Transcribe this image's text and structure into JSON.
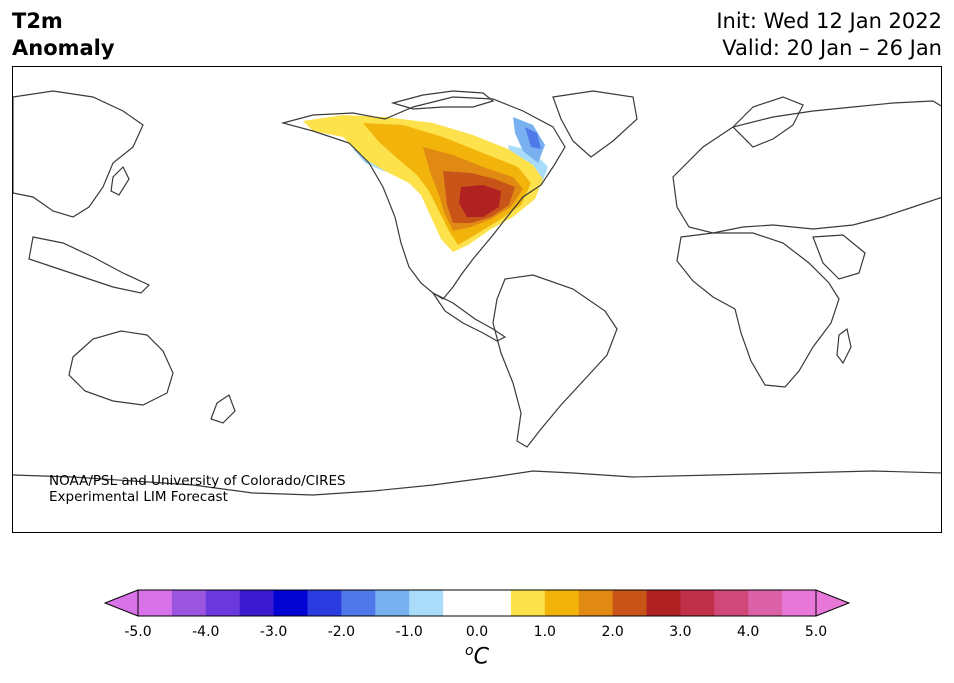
{
  "title": {
    "line1": "T2m",
    "line2": "Anomaly"
  },
  "init": {
    "label": "Init: Wed 12 Jan 2022"
  },
  "valid": {
    "label": "Valid: 20 Jan – 26 Jan"
  },
  "credit": {
    "line1": "NOAA/PSL and University of Colorado/CIRES",
    "line2": "Experimental LIM Forecast"
  },
  "colorbar": {
    "ticks": [
      "-5.0",
      "-4.0",
      "-3.0",
      "-2.0",
      "-1.0",
      "0.0",
      "1.0",
      "2.0",
      "3.0",
      "4.0",
      "5.0"
    ],
    "unit_base": "C",
    "unit_sup": "o",
    "colors": [
      "#d872e8",
      "#9b55e0",
      "#6a38dc",
      "#3a1ad0",
      "#0202d2",
      "#2a3ce0",
      "#4f78e8",
      "#78b0f0",
      "#a8dcfa",
      "#ffffff",
      "#ffffff",
      "#fde24c",
      "#f2b40a",
      "#e08a14",
      "#c85418",
      "#b02222",
      "#c03048",
      "#d04878",
      "#dc62a8",
      "#e878d8"
    ],
    "extend_low_color": "#d872e8",
    "extend_high_color": "#e878d8"
  },
  "anomaly_colors": {
    "light_yellow": "#fde24c",
    "yellow": "#f2b40a",
    "orange": "#e08a14",
    "dark_orange": "#c85418",
    "red": "#b02222",
    "light_blue": "#a8dcfa",
    "mid_blue": "#78b0f0",
    "blue": "#4f78e8"
  }
}
